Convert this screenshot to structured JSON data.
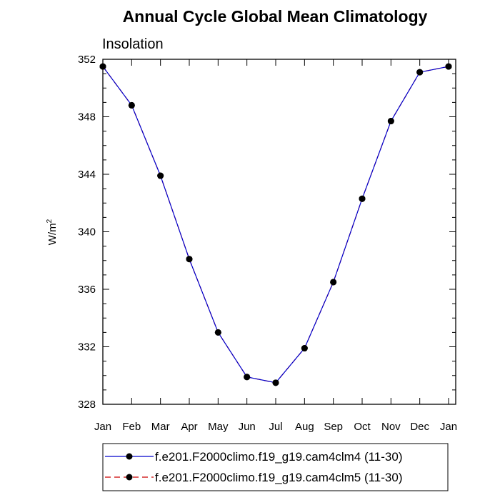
{
  "chart_data": {
    "type": "line",
    "title": "Annual Cycle Global Mean Climatology",
    "subtitle": "Insolation",
    "ylabel": "W/m",
    "ylabel_superscript": "2",
    "categories": [
      "Jan",
      "Feb",
      "Mar",
      "Apr",
      "May",
      "Jun",
      "Jul",
      "Aug",
      "Sep",
      "Oct",
      "Nov",
      "Dec",
      "Jan"
    ],
    "ylim": [
      328,
      352
    ],
    "yticks": [
      328,
      332,
      336,
      340,
      344,
      348,
      352
    ],
    "ytick_labels": [
      "328",
      "332",
      "336",
      "340",
      "344",
      "348",
      "352"
    ],
    "grid": false,
    "legend_position": "bottom",
    "series": [
      {
        "name": "f.e201.F2000climo.f19_g19.cam4clm4 (11-30)",
        "color": "#0000cc",
        "line_style": "solid",
        "marker": "filled-circle",
        "values": [
          351.5,
          348.8,
          343.9,
          338.1,
          333.0,
          329.9,
          329.5,
          331.9,
          336.5,
          342.3,
          347.7,
          351.1,
          351.5
        ]
      },
      {
        "name": "f.e201.F2000climo.f19_g19.cam4clm5 (11-30)",
        "color": "#cc0000",
        "line_style": "dashed",
        "marker": "filled-circle",
        "values": [
          351.5,
          348.8,
          343.9,
          338.1,
          333.0,
          329.9,
          329.5,
          331.9,
          336.5,
          342.3,
          347.7,
          351.1,
          351.5
        ]
      }
    ]
  }
}
